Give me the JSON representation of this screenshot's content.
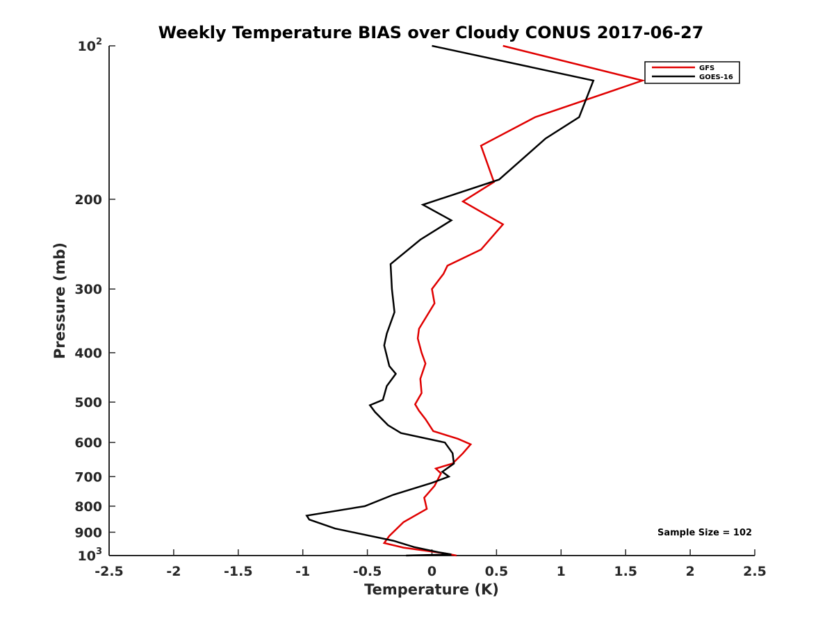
{
  "chart_data": {
    "type": "line",
    "title": "Weekly Temperature BIAS over Cloudy CONUS 2017-06-27",
    "xlabel": "Temperature (K)",
    "ylabel": "Pressure (mb)",
    "xlim": [
      -2.5,
      2.5
    ],
    "ylim": [
      100,
      1000
    ],
    "y_scale": "log",
    "y_reversed": true,
    "grid": false,
    "x_ticks": [
      {
        "value": -2.5,
        "label": "-2.5"
      },
      {
        "value": -2,
        "label": "-2"
      },
      {
        "value": -1.5,
        "label": "-1.5"
      },
      {
        "value": -1,
        "label": "-1"
      },
      {
        "value": -0.5,
        "label": "-0.5"
      },
      {
        "value": 0,
        "label": "0"
      },
      {
        "value": 0.5,
        "label": "0.5"
      },
      {
        "value": 1,
        "label": "1"
      },
      {
        "value": 1.5,
        "label": "1.5"
      },
      {
        "value": 2,
        "label": "2"
      },
      {
        "value": 2.5,
        "label": "2.5"
      }
    ],
    "y_ticks": [
      {
        "value": 100,
        "label": "10",
        "sup": "2"
      },
      {
        "value": 200,
        "label": "200"
      },
      {
        "value": 300,
        "label": "300"
      },
      {
        "value": 400,
        "label": "400"
      },
      {
        "value": 500,
        "label": "500"
      },
      {
        "value": 600,
        "label": "600"
      },
      {
        "value": 700,
        "label": "700"
      },
      {
        "value": 800,
        "label": "800"
      },
      {
        "value": 900,
        "label": "900"
      },
      {
        "value": 1000,
        "label": "10",
        "sup": "3"
      }
    ],
    "legend_position": "top-right",
    "annotation": "Sample Size = 102",
    "series": [
      {
        "name": "GFS",
        "color": "#e00000",
        "points": [
          [
            0.55,
            100
          ],
          [
            1.63,
            117
          ],
          [
            0.8,
            138
          ],
          [
            0.38,
            157
          ],
          [
            0.48,
            185
          ],
          [
            0.24,
            202
          ],
          [
            0.55,
            224
          ],
          [
            0.38,
            251
          ],
          [
            0.12,
            270
          ],
          [
            0.09,
            280
          ],
          [
            0.0,
            300
          ],
          [
            0.02,
            320
          ],
          [
            -0.1,
            359
          ],
          [
            -0.11,
            375
          ],
          [
            -0.08,
            400
          ],
          [
            -0.05,
            420
          ],
          [
            -0.09,
            450
          ],
          [
            -0.08,
            480
          ],
          [
            -0.13,
            505
          ],
          [
            -0.1,
            520
          ],
          [
            -0.05,
            540
          ],
          [
            0.01,
            570
          ],
          [
            0.2,
            590
          ],
          [
            0.3,
            605
          ],
          [
            0.24,
            630
          ],
          [
            0.16,
            660
          ],
          [
            0.03,
            675
          ],
          [
            0.07,
            690
          ],
          [
            0.02,
            730
          ],
          [
            -0.06,
            770
          ],
          [
            -0.04,
            810
          ],
          [
            -0.22,
            860
          ],
          [
            -0.33,
            915
          ],
          [
            -0.37,
            945
          ],
          [
            -0.22,
            965
          ],
          [
            0.1,
            990
          ],
          [
            0.19,
            1000
          ]
        ]
      },
      {
        "name": "GOES-16",
        "color": "#000000",
        "points": [
          [
            0.0,
            100
          ],
          [
            1.25,
            117
          ],
          [
            1.14,
            138
          ],
          [
            0.88,
            152
          ],
          [
            0.52,
            183
          ],
          [
            -0.07,
            205
          ],
          [
            0.15,
            220
          ],
          [
            -0.09,
            240
          ],
          [
            -0.32,
            268
          ],
          [
            -0.31,
            300
          ],
          [
            -0.29,
            333
          ],
          [
            -0.35,
            367
          ],
          [
            -0.37,
            387
          ],
          [
            -0.33,
            425
          ],
          [
            -0.28,
            440
          ],
          [
            -0.35,
            465
          ],
          [
            -0.38,
            495
          ],
          [
            -0.48,
            507
          ],
          [
            -0.44,
            523
          ],
          [
            -0.34,
            555
          ],
          [
            -0.24,
            575
          ],
          [
            0.1,
            600
          ],
          [
            0.16,
            630
          ],
          [
            0.17,
            660
          ],
          [
            0.08,
            685
          ],
          [
            0.13,
            700
          ],
          [
            0.0,
            720
          ],
          [
            -0.3,
            760
          ],
          [
            -0.52,
            800
          ],
          [
            -0.97,
            835
          ],
          [
            -0.95,
            850
          ],
          [
            -0.75,
            885
          ],
          [
            -0.3,
            935
          ],
          [
            -0.14,
            962
          ],
          [
            0.05,
            985
          ],
          [
            0.15,
            995
          ],
          [
            -0.2,
            1000
          ]
        ]
      }
    ]
  }
}
